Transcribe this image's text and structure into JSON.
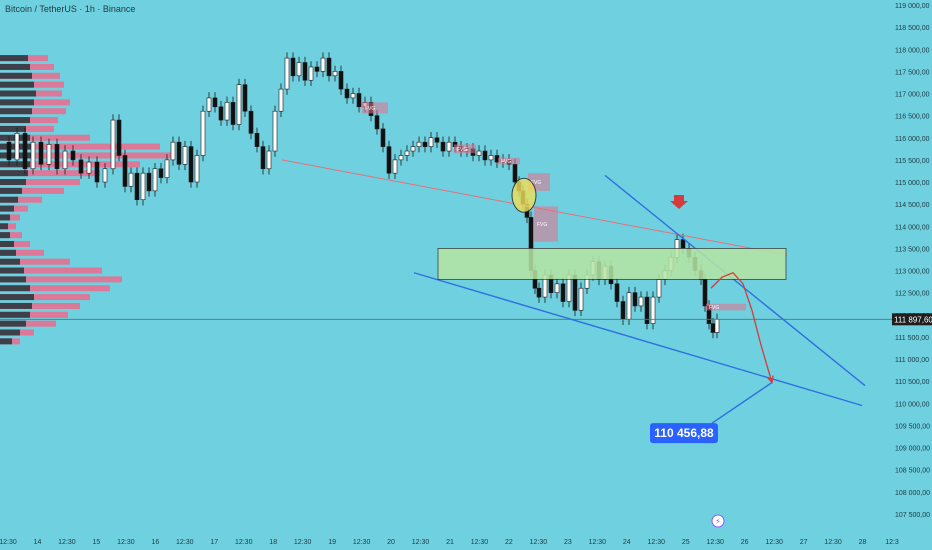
{
  "header": {
    "title": "Bitcoin / TetherUS · 1h · Binance"
  },
  "chart_data": {
    "type": "candlestick",
    "title": "Bitcoin / TetherUS · 1h · Binance",
    "ylim": [
      107250,
      119000
    ],
    "y_ticks": [
      119000,
      118500,
      118000,
      117500,
      117000,
      116500,
      116000,
      115500,
      115000,
      114500,
      114000,
      113500,
      113000,
      112500,
      112000,
      111500,
      111000,
      110500,
      110000,
      109500,
      109000,
      108500,
      108000,
      107500
    ],
    "y_tick_labels": [
      "119 000,00",
      "118 500,00",
      "118 000,00",
      "117 500,00",
      "117 000,00",
      "116 500,00",
      "116 000,00",
      "115 500,00",
      "115 000,00",
      "114 500,00",
      "114 000,00",
      "113 500,00",
      "113 000,00",
      "112 500,00",
      "112 000,00",
      "111 500,00",
      "111 000,00",
      "110 500,00",
      "110 000,00",
      "109 500,00",
      "109 000,00",
      "108 500,00",
      "108 000,00",
      "107 500,00"
    ],
    "x_tick_labels": [
      "12:30",
      "14",
      "12:30",
      "15",
      "12:30",
      "16",
      "12:30",
      "17",
      "12:30",
      "18",
      "12:30",
      "19",
      "12:30",
      "20",
      "12:30",
      "21",
      "12:30",
      "22",
      "12:30",
      "23",
      "12:30",
      "24",
      "12:30",
      "25",
      "12:30",
      "26",
      "12:30",
      "27",
      "12:30",
      "28",
      "12:3"
    ],
    "current_price": 111897.6,
    "current_price_label": "111 897,60",
    "target_price": 110456.88,
    "target_label": "110 456,88",
    "price_path": [
      [
        3,
        115900
      ],
      [
        10,
        115500
      ],
      [
        18,
        116100
      ],
      [
        26,
        115300
      ],
      [
        34,
        115900
      ],
      [
        42,
        115400
      ],
      [
        50,
        115850
      ],
      [
        58,
        115300
      ],
      [
        66,
        115700
      ],
      [
        74,
        115500
      ],
      [
        82,
        115200
      ],
      [
        90,
        115450
      ],
      [
        98,
        115000
      ],
      [
        106,
        115300
      ],
      [
        114,
        116400
      ],
      [
        120,
        115600
      ],
      [
        126,
        114900
      ],
      [
        132,
        115200
      ],
      [
        138,
        114600
      ],
      [
        144,
        115200
      ],
      [
        150,
        114800
      ],
      [
        156,
        115300
      ],
      [
        162,
        115100
      ],
      [
        168,
        115500
      ],
      [
        174,
        115900
      ],
      [
        180,
        115400
      ],
      [
        186,
        115800
      ],
      [
        192,
        115000
      ],
      [
        198,
        115600
      ],
      [
        204,
        116600
      ],
      [
        210,
        116900
      ],
      [
        216,
        116700
      ],
      [
        222,
        116400
      ],
      [
        228,
        116800
      ],
      [
        234,
        116300
      ],
      [
        240,
        117200
      ],
      [
        246,
        116600
      ],
      [
        252,
        116100
      ],
      [
        258,
        115800
      ],
      [
        264,
        115300
      ],
      [
        270,
        115700
      ],
      [
        276,
        116600
      ],
      [
        282,
        117100
      ],
      [
        288,
        117800
      ],
      [
        294,
        117400
      ],
      [
        300,
        117700
      ],
      [
        306,
        117300
      ],
      [
        312,
        117600
      ],
      [
        318,
        117500
      ],
      [
        324,
        117800
      ],
      [
        330,
        117400
      ],
      [
        336,
        117500
      ],
      [
        342,
        117100
      ],
      [
        348,
        116900
      ],
      [
        354,
        117000
      ],
      [
        360,
        116700
      ],
      [
        366,
        116800
      ],
      [
        372,
        116500
      ],
      [
        378,
        116200
      ],
      [
        384,
        115800
      ],
      [
        390,
        115200
      ],
      [
        396,
        115500
      ],
      [
        402,
        115600
      ],
      [
        408,
        115700
      ],
      [
        414,
        115800
      ],
      [
        420,
        115900
      ],
      [
        426,
        115800
      ],
      [
        432,
        116000
      ],
      [
        438,
        115900
      ],
      [
        444,
        115700
      ],
      [
        450,
        115900
      ],
      [
        456,
        115800
      ],
      [
        462,
        115700
      ],
      [
        468,
        115750
      ],
      [
        474,
        115600
      ],
      [
        480,
        115700
      ],
      [
        486,
        115500
      ],
      [
        492,
        115600
      ],
      [
        498,
        115450
      ],
      [
        504,
        115500
      ],
      [
        510,
        115400
      ],
      [
        516,
        115000
      ],
      [
        520,
        114800
      ],
      [
        524,
        114500
      ],
      [
        528,
        114200
      ],
      [
        532,
        113000
      ],
      [
        536,
        112600
      ],
      [
        540,
        112400
      ],
      [
        546,
        112900
      ],
      [
        552,
        112500
      ],
      [
        558,
        112700
      ],
      [
        564,
        112300
      ],
      [
        570,
        112900
      ],
      [
        576,
        112100
      ],
      [
        582,
        112600
      ],
      [
        588,
        112900
      ],
      [
        594,
        113200
      ],
      [
        600,
        112800
      ],
      [
        606,
        113100
      ],
      [
        612,
        112700
      ],
      [
        618,
        112300
      ],
      [
        624,
        111900
      ],
      [
        630,
        112500
      ],
      [
        636,
        112200
      ],
      [
        642,
        112400
      ],
      [
        648,
        111800
      ],
      [
        654,
        112400
      ],
      [
        660,
        112800
      ],
      [
        666,
        113000
      ],
      [
        672,
        113300
      ],
      [
        678,
        113700
      ],
      [
        684,
        113500
      ],
      [
        690,
        113300
      ],
      [
        696,
        113000
      ],
      [
        702,
        112800
      ],
      [
        706,
        112200
      ],
      [
        710,
        111800
      ],
      [
        714,
        111600
      ],
      [
        718,
        111900
      ]
    ],
    "fvg_zones": [
      {
        "label": "FVG",
        "x0": 362,
        "x1": 388,
        "y0": 116550,
        "y1": 116800
      },
      {
        "label": "FVG",
        "x0": 454,
        "x1": 476,
        "y0": 115650,
        "y1": 115850
      },
      {
        "label": "FVG",
        "x0": 498,
        "x1": 520,
        "y0": 115400,
        "y1": 115550
      },
      {
        "label": "FVG",
        "x0": 528,
        "x1": 550,
        "y0": 114800,
        "y1": 115200
      },
      {
        "label": "FVG",
        "x0": 534,
        "x1": 558,
        "y0": 113650,
        "y1": 114450
      },
      {
        "label": "FVG",
        "x0": 706,
        "x1": 746,
        "y0": 112100,
        "y1": 112250
      }
    ],
    "volume_profile": {
      "levels": [
        117800,
        117600,
        117400,
        117200,
        117000,
        116800,
        116600,
        116400,
        116200,
        116000,
        115800,
        115600,
        115400,
        115200,
        115000,
        114800,
        114600,
        114400,
        114200,
        114000,
        113800,
        113600,
        113400,
        113200,
        113000,
        112800,
        112600,
        112400,
        112200,
        112000,
        111800,
        111600,
        111400
      ],
      "dark": [
        28,
        30,
        32,
        34,
        36,
        34,
        32,
        30,
        26,
        30,
        34,
        32,
        30,
        28,
        26,
        22,
        18,
        14,
        10,
        8,
        10,
        14,
        16,
        20,
        24,
        26,
        30,
        34,
        32,
        30,
        26,
        20,
        12
      ],
      "pink": [
        48,
        54,
        60,
        64,
        62,
        70,
        66,
        58,
        54,
        90,
        160,
        175,
        140,
        100,
        80,
        64,
        42,
        28,
        20,
        16,
        22,
        30,
        44,
        70,
        102,
        122,
        110,
        90,
        80,
        68,
        56,
        34,
        20
      ]
    },
    "annotations": {
      "key_zone": {
        "y0": 112800,
        "y1": 113500
      },
      "circle_marker": {
        "price": 114700
      },
      "down_arrow": {
        "price": 114300
      },
      "projected_path": [
        [
          711,
          112600
        ],
        [
          722,
          112850
        ],
        [
          733,
          112950
        ],
        [
          743,
          112700
        ],
        [
          752,
          112100
        ],
        [
          760,
          111400
        ],
        [
          767,
          110850
        ],
        [
          772,
          110470
        ]
      ]
    },
    "lines": [
      {
        "name": "resistance",
        "color": "#e8707a",
        "points": [
          [
            282,
            115500
          ],
          [
            787,
            113350
          ]
        ]
      },
      {
        "name": "upper_channel",
        "color": "#2f6fe0",
        "points": [
          [
            605,
            115150
          ],
          [
            865,
            110400
          ]
        ]
      },
      {
        "name": "lower_channel",
        "color": "#2f6fe0",
        "points": [
          [
            414,
            112950
          ],
          [
            862,
            109950
          ]
        ]
      },
      {
        "name": "target_leader",
        "color": "#2f6fe0",
        "points": [
          [
            712,
            109550
          ],
          [
            772,
            110470
          ]
        ]
      }
    ],
    "colors": {
      "background": "#6fd0df",
      "up_candle": "#2fa89a",
      "down_candle": "#e5525c",
      "candle_stroke": "#1b1b1b",
      "zone_fill": "#b6e6a4",
      "zone_stroke": "#2c2c2c",
      "pink_profile": "#e86f90",
      "dark_profile": "#2b3940",
      "target_fill": "#2962ff",
      "arrow": "#d63a3a",
      "text": "#1d3b44",
      "price_label_bg": "#1e1e1e"
    }
  }
}
